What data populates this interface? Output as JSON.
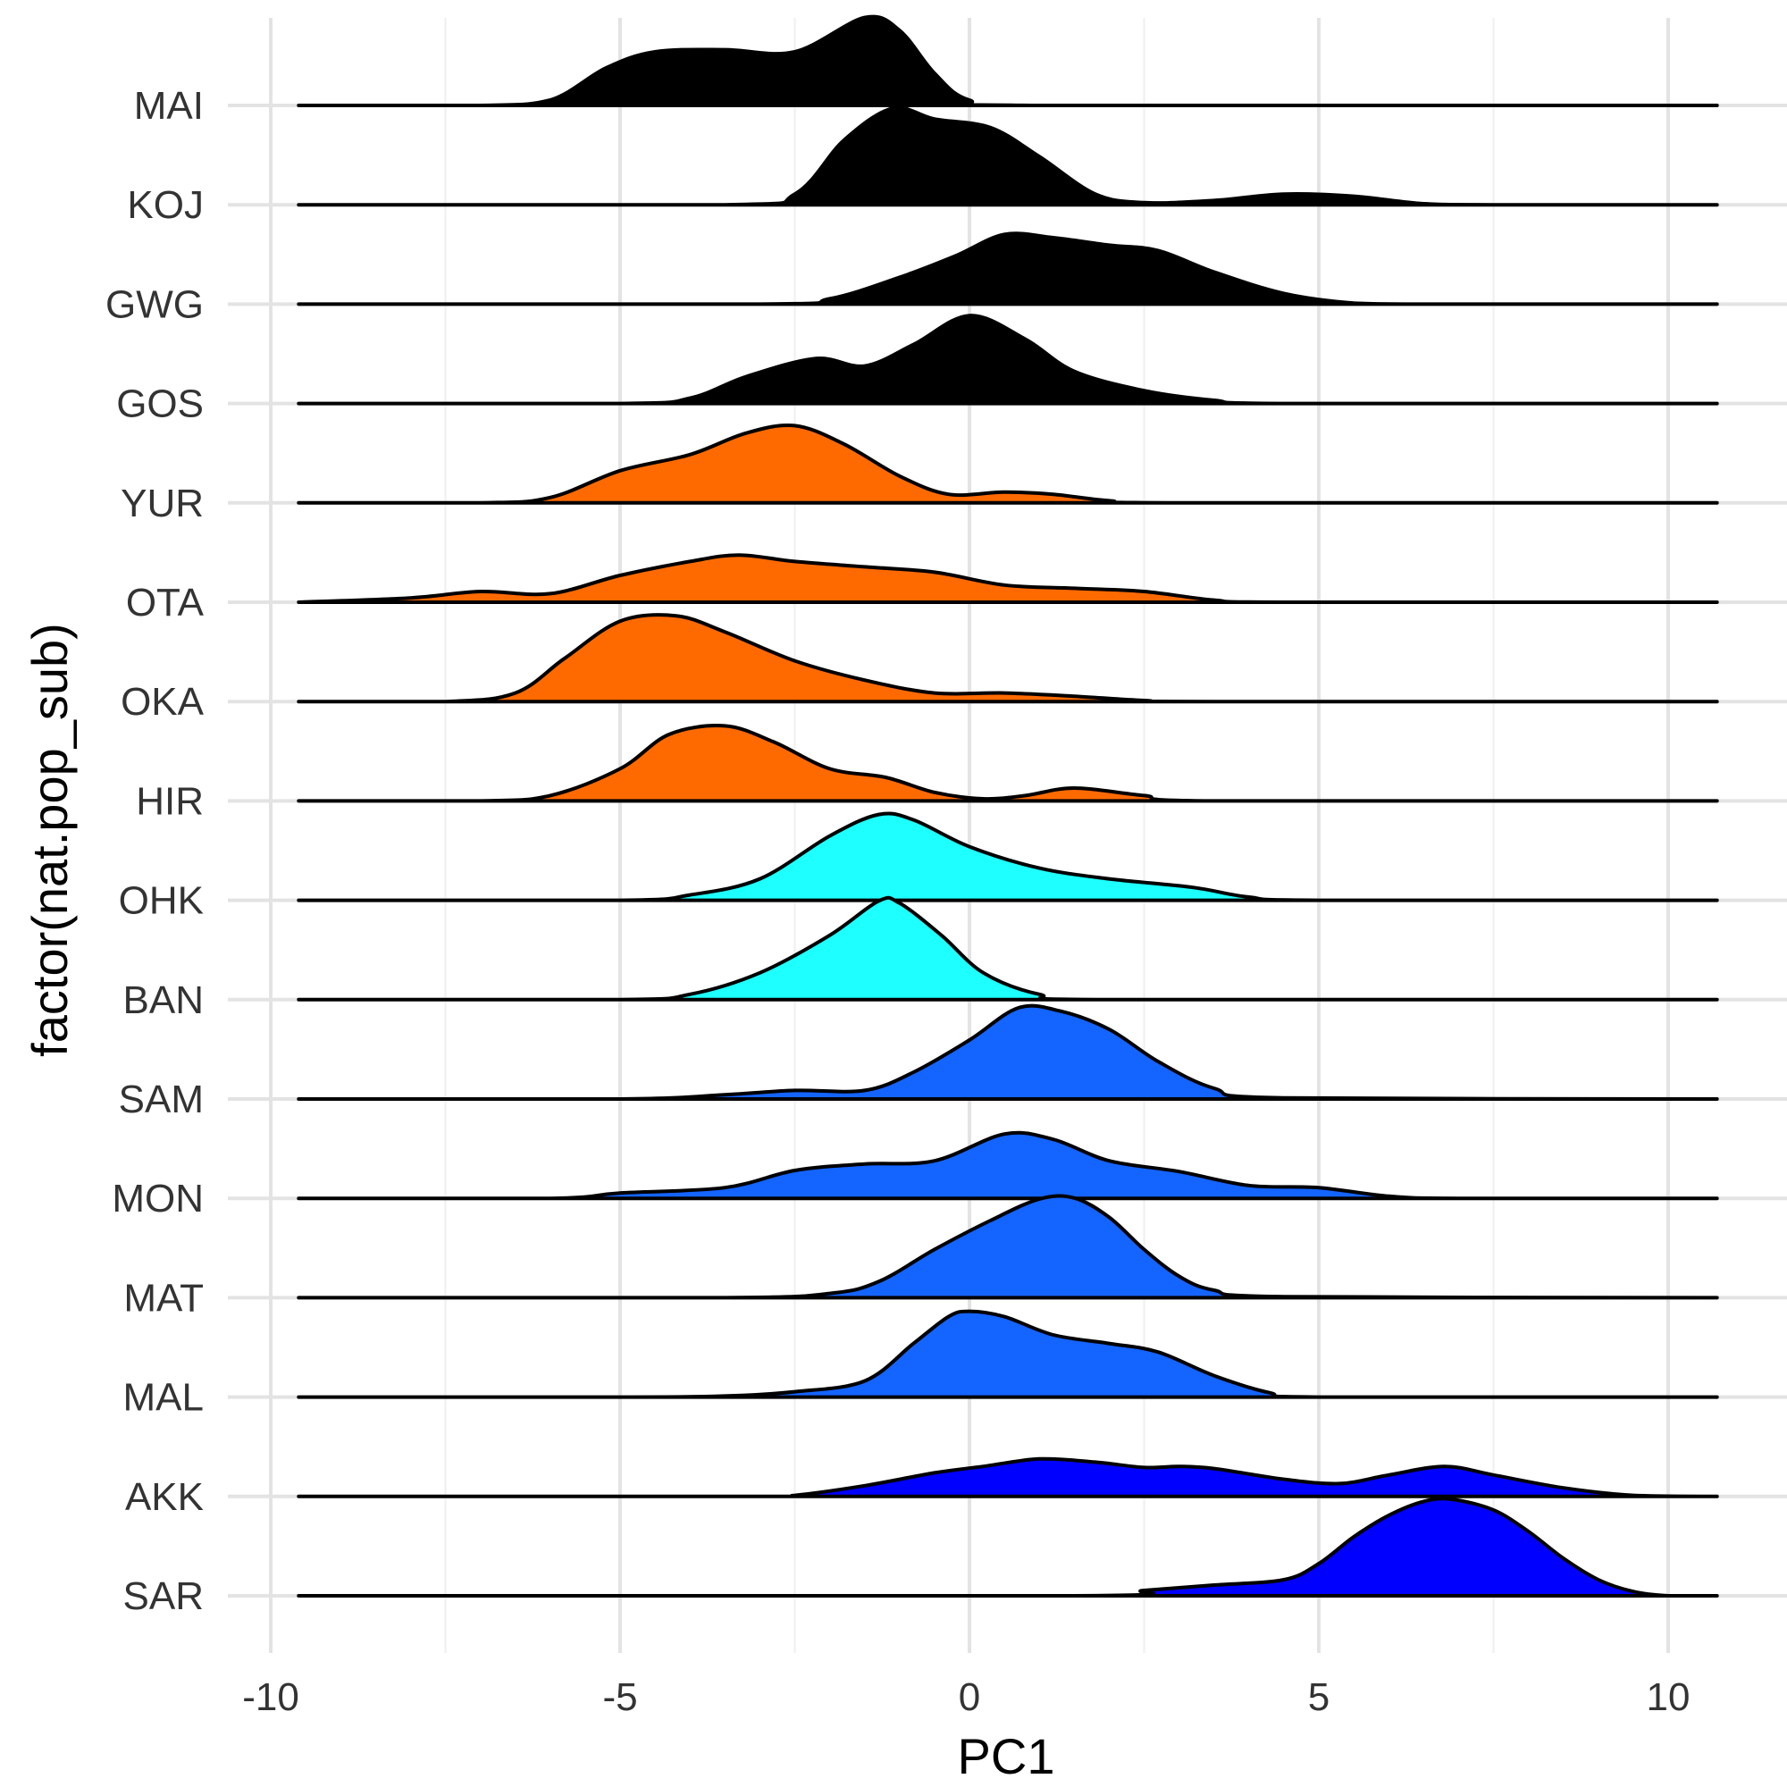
{
  "chart_data": {
    "type": "ridgeline",
    "xlabel": "PC1",
    "ylabel": "factor(nat.pop_sub)",
    "xlim": [
      -10.5,
      11.5
    ],
    "xticks": [
      -10,
      -5,
      0,
      5,
      10
    ],
    "x_tick_labels": [
      "-10",
      "-5",
      "0",
      "5",
      "10"
    ],
    "density_range": [
      -9.6,
      10.7
    ],
    "grid": true,
    "series": [
      {
        "name": "SAR",
        "color": "#0000FF",
        "points": [
          [
            -9.6,
            0
          ],
          [
            1.5,
            0
          ],
          [
            2.5,
            0.05
          ],
          [
            3.5,
            0.1
          ],
          [
            4.5,
            0.15
          ],
          [
            5,
            0.3
          ],
          [
            5.5,
            0.55
          ],
          [
            6,
            0.75
          ],
          [
            6.5,
            0.88
          ],
          [
            6.9,
            0.9
          ],
          [
            7.5,
            0.8
          ],
          [
            8,
            0.6
          ],
          [
            8.5,
            0.35
          ],
          [
            9,
            0.15
          ],
          [
            9.5,
            0.04
          ],
          [
            10,
            0
          ],
          [
            10.7,
            0
          ]
        ]
      },
      {
        "name": "AKK",
        "color": "#0000FF",
        "points": [
          [
            -9.6,
            0
          ],
          [
            -3,
            0
          ],
          [
            -2.5,
            0.01
          ],
          [
            -1.5,
            0.1
          ],
          [
            -0.5,
            0.22
          ],
          [
            0.2,
            0.28
          ],
          [
            1,
            0.35
          ],
          [
            1.8,
            0.32
          ],
          [
            2.5,
            0.27
          ],
          [
            3,
            0.28
          ],
          [
            3.5,
            0.26
          ],
          [
            4.5,
            0.16
          ],
          [
            5.3,
            0.12
          ],
          [
            6,
            0.2
          ],
          [
            6.8,
            0.28
          ],
          [
            7.5,
            0.2
          ],
          [
            8.5,
            0.08
          ],
          [
            9.5,
            0.01
          ],
          [
            10.7,
            0
          ]
        ]
      },
      {
        "name": "MAL",
        "color": "#1464FF",
        "points": [
          [
            -9.6,
            0
          ],
          [
            -5,
            0
          ],
          [
            -3.5,
            0.01
          ],
          [
            -2.5,
            0.05
          ],
          [
            -1.5,
            0.15
          ],
          [
            -0.8,
            0.5
          ],
          [
            -0.3,
            0.75
          ],
          [
            0,
            0.8
          ],
          [
            0.5,
            0.75
          ],
          [
            1.2,
            0.58
          ],
          [
            2,
            0.5
          ],
          [
            2.7,
            0.42
          ],
          [
            3.5,
            0.2
          ],
          [
            4.3,
            0.04
          ],
          [
            5,
            0
          ],
          [
            10.7,
            0
          ]
        ]
      },
      {
        "name": "MAT",
        "color": "#1464FF",
        "points": [
          [
            -9.6,
            0
          ],
          [
            -3.5,
            0
          ],
          [
            -2,
            0.04
          ],
          [
            -1.3,
            0.15
          ],
          [
            -0.5,
            0.45
          ],
          [
            0.3,
            0.72
          ],
          [
            1,
            0.92
          ],
          [
            1.5,
            0.93
          ],
          [
            2,
            0.75
          ],
          [
            2.5,
            0.45
          ],
          [
            3,
            0.2
          ],
          [
            3.5,
            0.07
          ],
          [
            4.5,
            0.01
          ],
          [
            10.7,
            0
          ]
        ]
      },
      {
        "name": "MON",
        "color": "#1464FF",
        "points": [
          [
            -9.6,
            0
          ],
          [
            -6,
            0
          ],
          [
            -5,
            0.05
          ],
          [
            -3.5,
            0.1
          ],
          [
            -2.5,
            0.26
          ],
          [
            -1.5,
            0.32
          ],
          [
            -0.5,
            0.35
          ],
          [
            0.5,
            0.6
          ],
          [
            1.2,
            0.55
          ],
          [
            2,
            0.35
          ],
          [
            3,
            0.25
          ],
          [
            4,
            0.12
          ],
          [
            5,
            0.1
          ],
          [
            6,
            0.02
          ],
          [
            7,
            0
          ],
          [
            10.7,
            0
          ]
        ]
      },
      {
        "name": "SAM",
        "color": "#1464FF",
        "points": [
          [
            -9.6,
            0
          ],
          [
            -5,
            0
          ],
          [
            -3.5,
            0.04
          ],
          [
            -2.5,
            0.08
          ],
          [
            -1.5,
            0.08
          ],
          [
            -0.8,
            0.25
          ],
          [
            0,
            0.55
          ],
          [
            0.7,
            0.85
          ],
          [
            1.3,
            0.82
          ],
          [
            2,
            0.65
          ],
          [
            2.7,
            0.35
          ],
          [
            3.5,
            0.1
          ],
          [
            4.5,
            0.01
          ],
          [
            10.7,
            0
          ]
        ]
      },
      {
        "name": "BAN",
        "color": "#1EFFFF",
        "points": [
          [
            -9.6,
            0
          ],
          [
            -5,
            0
          ],
          [
            -4,
            0.05
          ],
          [
            -3,
            0.25
          ],
          [
            -2,
            0.6
          ],
          [
            -1.3,
            0.92
          ],
          [
            -1,
            0.9
          ],
          [
            -0.4,
            0.6
          ],
          [
            0.2,
            0.25
          ],
          [
            1,
            0.05
          ],
          [
            2,
            0
          ],
          [
            10.7,
            0
          ]
        ]
      },
      {
        "name": "OHK",
        "color": "#1EFFFF",
        "points": [
          [
            -9.6,
            0
          ],
          [
            -5,
            0
          ],
          [
            -4,
            0.05
          ],
          [
            -3,
            0.2
          ],
          [
            -2,
            0.6
          ],
          [
            -1.3,
            0.8
          ],
          [
            -0.8,
            0.75
          ],
          [
            0,
            0.5
          ],
          [
            1,
            0.3
          ],
          [
            2,
            0.2
          ],
          [
            3.2,
            0.12
          ],
          [
            4,
            0.03
          ],
          [
            5,
            0
          ],
          [
            10.7,
            0
          ]
        ]
      },
      {
        "name": "HIR",
        "color": "#FF6A00",
        "points": [
          [
            -9.6,
            0
          ],
          [
            -7,
            0
          ],
          [
            -6,
            0.05
          ],
          [
            -5,
            0.3
          ],
          [
            -4.3,
            0.62
          ],
          [
            -3.5,
            0.7
          ],
          [
            -2.8,
            0.55
          ],
          [
            -2,
            0.3
          ],
          [
            -1.2,
            0.22
          ],
          [
            -0.5,
            0.08
          ],
          [
            0.2,
            0.02
          ],
          [
            0.8,
            0.05
          ],
          [
            1.5,
            0.12
          ],
          [
            2.5,
            0.05
          ],
          [
            3.5,
            0
          ],
          [
            10.7,
            0
          ]
        ]
      },
      {
        "name": "OKA",
        "color": "#FF6A00",
        "points": [
          [
            -9.6,
            0
          ],
          [
            -7.5,
            0
          ],
          [
            -6.5,
            0.08
          ],
          [
            -5.8,
            0.4
          ],
          [
            -5,
            0.75
          ],
          [
            -4.2,
            0.8
          ],
          [
            -3.5,
            0.65
          ],
          [
            -2.5,
            0.38
          ],
          [
            -1.5,
            0.2
          ],
          [
            -0.5,
            0.08
          ],
          [
            0.5,
            0.08
          ],
          [
            1.5,
            0.05
          ],
          [
            2.5,
            0.01
          ],
          [
            3.5,
            0
          ],
          [
            10.7,
            0
          ]
        ]
      },
      {
        "name": "OTA",
        "color": "#FF6A00",
        "points": [
          [
            -9.6,
            0
          ],
          [
            -8,
            0.04
          ],
          [
            -7,
            0.1
          ],
          [
            -6,
            0.08
          ],
          [
            -5,
            0.25
          ],
          [
            -4,
            0.38
          ],
          [
            -3.3,
            0.44
          ],
          [
            -2.5,
            0.38
          ],
          [
            -1.5,
            0.33
          ],
          [
            -0.5,
            0.28
          ],
          [
            0.5,
            0.16
          ],
          [
            1.5,
            0.13
          ],
          [
            2.5,
            0.1
          ],
          [
            3.5,
            0.02
          ],
          [
            4.5,
            0
          ],
          [
            10.7,
            0
          ]
        ]
      },
      {
        "name": "YUR",
        "color": "#FF6A00",
        "points": [
          [
            -9.6,
            0
          ],
          [
            -7,
            0
          ],
          [
            -6,
            0.05
          ],
          [
            -5,
            0.3
          ],
          [
            -4,
            0.45
          ],
          [
            -3.2,
            0.65
          ],
          [
            -2.5,
            0.72
          ],
          [
            -1.8,
            0.55
          ],
          [
            -1,
            0.25
          ],
          [
            -0.3,
            0.08
          ],
          [
            0.5,
            0.1
          ],
          [
            1.2,
            0.08
          ],
          [
            2,
            0.02
          ],
          [
            3,
            0
          ],
          [
            10.7,
            0
          ]
        ]
      },
      {
        "name": "GOS",
        "color": "#000000",
        "points": [
          [
            -9.6,
            0
          ],
          [
            -5,
            0
          ],
          [
            -4,
            0.05
          ],
          [
            -3.2,
            0.25
          ],
          [
            -2.2,
            0.42
          ],
          [
            -1.5,
            0.35
          ],
          [
            -0.8,
            0.55
          ],
          [
            0,
            0.82
          ],
          [
            0.8,
            0.6
          ],
          [
            1.5,
            0.3
          ],
          [
            2.5,
            0.12
          ],
          [
            3.5,
            0.03
          ],
          [
            4.5,
            0
          ],
          [
            10.7,
            0
          ]
        ]
      },
      {
        "name": "GWG",
        "color": "#000000",
        "points": [
          [
            -9.6,
            0
          ],
          [
            -3,
            0
          ],
          [
            -2,
            0.05
          ],
          [
            -1,
            0.25
          ],
          [
            -0.2,
            0.45
          ],
          [
            0.5,
            0.65
          ],
          [
            1.2,
            0.62
          ],
          [
            2,
            0.55
          ],
          [
            2.7,
            0.5
          ],
          [
            3.5,
            0.3
          ],
          [
            4.5,
            0.1
          ],
          [
            5.5,
            0.01
          ],
          [
            6.5,
            0
          ],
          [
            10.7,
            0
          ]
        ]
      },
      {
        "name": "KOJ",
        "color": "#000000",
        "points": [
          [
            -9.6,
            0
          ],
          [
            -3.5,
            0
          ],
          [
            -2.5,
            0.1
          ],
          [
            -1.8,
            0.6
          ],
          [
            -1.1,
            0.9
          ],
          [
            -0.5,
            0.8
          ],
          [
            0.3,
            0.72
          ],
          [
            1,
            0.45
          ],
          [
            1.8,
            0.1
          ],
          [
            2.5,
            0.02
          ],
          [
            3.5,
            0.04
          ],
          [
            4.5,
            0.1
          ],
          [
            5.5,
            0.08
          ],
          [
            6.5,
            0.01
          ],
          [
            7.5,
            0
          ],
          [
            10.7,
            0
          ]
        ]
      },
      {
        "name": "MAI",
        "color": "#000000",
        "points": [
          [
            -9.6,
            0
          ],
          [
            -7,
            0
          ],
          [
            -6,
            0.05
          ],
          [
            -5.2,
            0.35
          ],
          [
            -4.5,
            0.5
          ],
          [
            -3.5,
            0.52
          ],
          [
            -2.5,
            0.5
          ],
          [
            -1.5,
            0.82
          ],
          [
            -1,
            0.7
          ],
          [
            -0.5,
            0.3
          ],
          [
            0,
            0.05
          ],
          [
            1,
            0
          ],
          [
            10.7,
            0
          ]
        ]
      }
    ]
  }
}
